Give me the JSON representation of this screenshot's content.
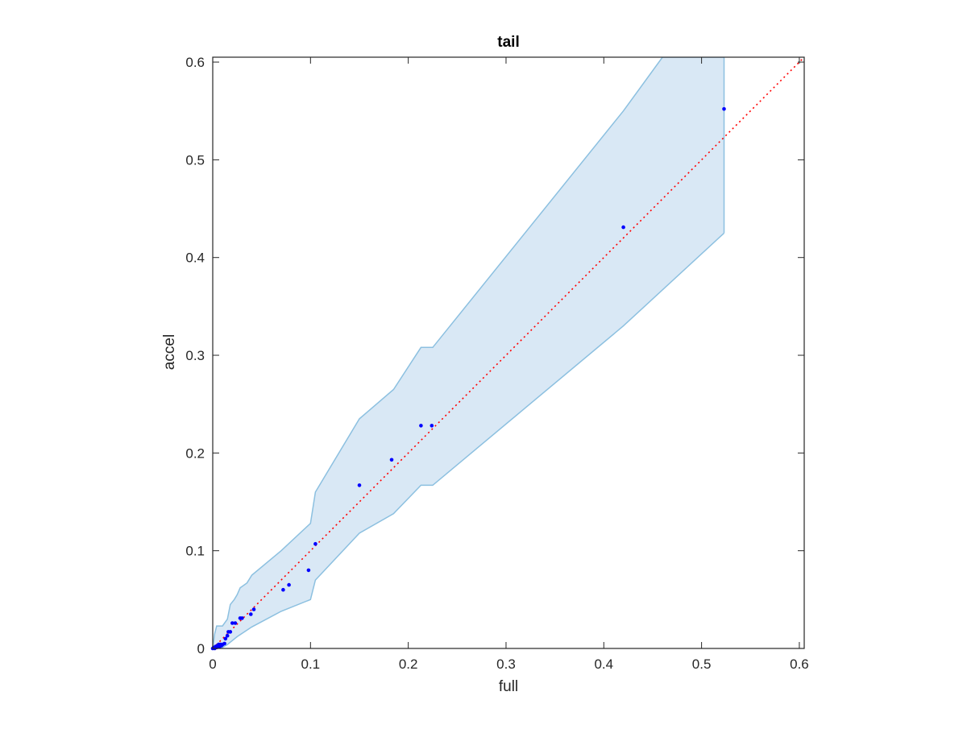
{
  "chart_data": {
    "type": "scatter",
    "title": "tail",
    "xlabel": "full",
    "ylabel": "accel",
    "xlim": [
      0,
      0.605
    ],
    "ylim": [
      0,
      0.605
    ],
    "xticks": [
      0,
      0.1,
      0.2,
      0.3,
      0.4,
      0.5,
      0.6
    ],
    "yticks": [
      0,
      0.1,
      0.2,
      0.3,
      0.4,
      0.5,
      0.6
    ],
    "xtick_labels": [
      "0",
      "0.1",
      "0.2",
      "0.3",
      "0.4",
      "0.5",
      "0.6"
    ],
    "ytick_labels": [
      "0",
      "0.1",
      "0.2",
      "0.3",
      "0.4",
      "0.5",
      "0.6"
    ],
    "grid": false,
    "legend": "none",
    "colors": {
      "points": "#0000ff",
      "reference_line": "#ff0000",
      "band_fill": "#d9e8f5",
      "band_edge": "#8cc0e0",
      "axes": "#262626"
    },
    "points": [
      {
        "x": 0.0,
        "y": 0.0
      },
      {
        "x": 0.001,
        "y": 0.001
      },
      {
        "x": 0.002,
        "y": 0.0
      },
      {
        "x": 0.003,
        "y": 0.002
      },
      {
        "x": 0.004,
        "y": 0.001
      },
      {
        "x": 0.005,
        "y": 0.003
      },
      {
        "x": 0.006,
        "y": 0.004
      },
      {
        "x": 0.007,
        "y": 0.002
      },
      {
        "x": 0.008,
        "y": 0.004
      },
      {
        "x": 0.009,
        "y": 0.003
      },
      {
        "x": 0.01,
        "y": 0.004
      },
      {
        "x": 0.012,
        "y": 0.005
      },
      {
        "x": 0.013,
        "y": 0.01
      },
      {
        "x": 0.015,
        "y": 0.013
      },
      {
        "x": 0.016,
        "y": 0.017
      },
      {
        "x": 0.018,
        "y": 0.017
      },
      {
        "x": 0.02,
        "y": 0.026
      },
      {
        "x": 0.023,
        "y": 0.026
      },
      {
        "x": 0.028,
        "y": 0.031
      },
      {
        "x": 0.03,
        "y": 0.031
      },
      {
        "x": 0.039,
        "y": 0.035
      },
      {
        "x": 0.042,
        "y": 0.04
      },
      {
        "x": 0.072,
        "y": 0.06
      },
      {
        "x": 0.078,
        "y": 0.065
      },
      {
        "x": 0.098,
        "y": 0.08
      },
      {
        "x": 0.105,
        "y": 0.107
      },
      {
        "x": 0.15,
        "y": 0.167
      },
      {
        "x": 0.183,
        "y": 0.193
      },
      {
        "x": 0.213,
        "y": 0.228
      },
      {
        "x": 0.224,
        "y": 0.228
      },
      {
        "x": 0.42,
        "y": 0.431
      },
      {
        "x": 0.523,
        "y": 0.552
      }
    ],
    "reference_line": {
      "style": "dotted",
      "from": [
        0,
        0
      ],
      "to": [
        0.605,
        0.605
      ]
    },
    "confidence_band": {
      "upper": [
        [
          0.0,
          0.0
        ],
        [
          0.002,
          0.015
        ],
        [
          0.004,
          0.023
        ],
        [
          0.01,
          0.023
        ],
        [
          0.015,
          0.03
        ],
        [
          0.018,
          0.045
        ],
        [
          0.022,
          0.05
        ],
        [
          0.025,
          0.055
        ],
        [
          0.028,
          0.062
        ],
        [
          0.035,
          0.067
        ],
        [
          0.04,
          0.075
        ],
        [
          0.07,
          0.1
        ],
        [
          0.1,
          0.128
        ],
        [
          0.105,
          0.16
        ],
        [
          0.15,
          0.235
        ],
        [
          0.185,
          0.265
        ],
        [
          0.213,
          0.308
        ],
        [
          0.225,
          0.308
        ],
        [
          0.42,
          0.55
        ],
        [
          0.46,
          0.605
        ],
        [
          0.523,
          0.605
        ]
      ],
      "lower": [
        [
          0.523,
          0.425
        ],
        [
          0.42,
          0.33
        ],
        [
          0.225,
          0.167
        ],
        [
          0.213,
          0.167
        ],
        [
          0.185,
          0.138
        ],
        [
          0.15,
          0.118
        ],
        [
          0.105,
          0.07
        ],
        [
          0.1,
          0.05
        ],
        [
          0.07,
          0.038
        ],
        [
          0.04,
          0.022
        ],
        [
          0.025,
          0.012
        ],
        [
          0.015,
          0.004
        ],
        [
          0.008,
          0.0
        ],
        [
          0.0,
          0.0
        ]
      ]
    }
  }
}
